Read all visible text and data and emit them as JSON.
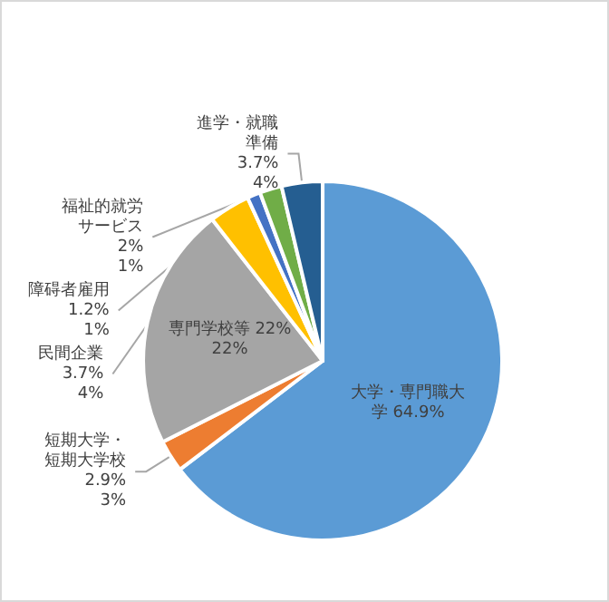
{
  "chart_data": {
    "type": "pie",
    "categories": [
      "大学・専門職大学",
      "短期大学・短期大学校",
      "専門学校等",
      "民間企業",
      "障碍者雇用",
      "福祉的就労サービス",
      "進学・就職準備"
    ],
    "values": [
      64.9,
      2.9,
      22,
      3.7,
      1.2,
      2,
      3.7
    ],
    "value_labels": [
      "64.9%",
      "2.9%\n3%",
      "22%\n22%",
      "3.7%\n4%",
      "1.2%\n1%",
      "2%\n1%",
      "3.7%\n4%"
    ],
    "colors": [
      "#5b9bd5",
      "#ed7d31",
      "#a5a5a5",
      "#ffc000",
      "#4472c4",
      "#70ad47",
      "#255e91"
    ]
  }
}
